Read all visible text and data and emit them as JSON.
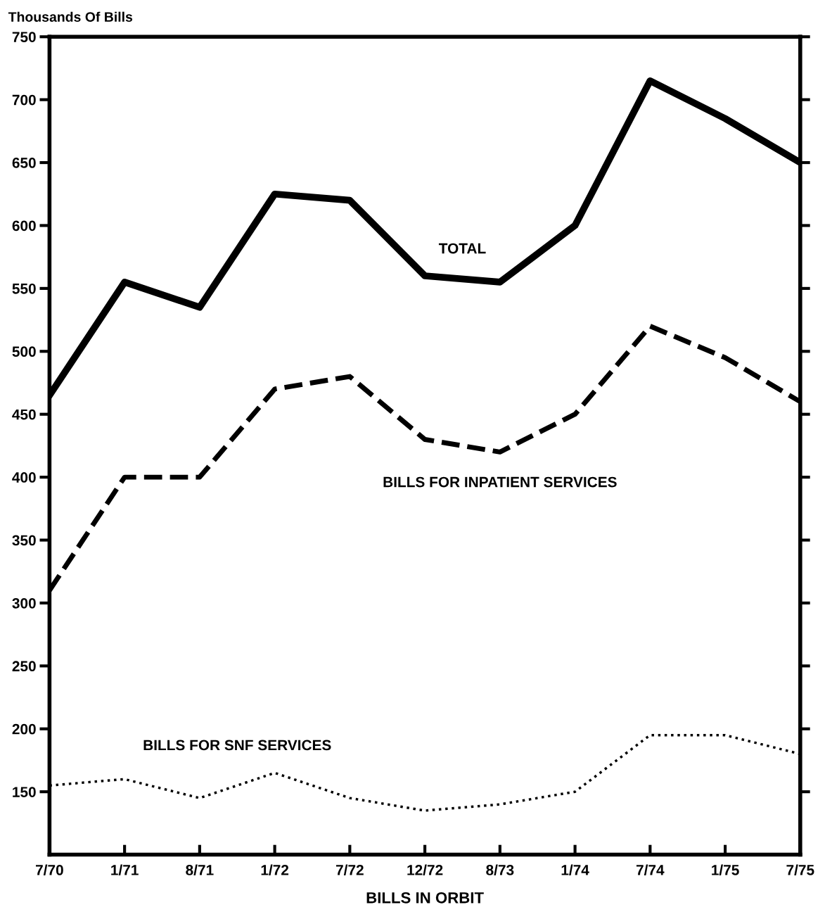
{
  "chart_data": {
    "type": "line",
    "ylabel": "Thousands Of Bills",
    "xlabel": "BILLS IN ORBIT",
    "categories": [
      "7/70",
      "1/71",
      "8/71",
      "1/72",
      "7/72",
      "12/72",
      "8/73",
      "1/74",
      "7/74",
      "1/75",
      "7/75"
    ],
    "series": [
      {
        "name": "TOTAL",
        "color": "#000000",
        "line_style": "solid",
        "values": [
          465,
          555,
          535,
          625,
          620,
          560,
          555,
          600,
          715,
          685,
          650
        ]
      },
      {
        "name": "BILLS FOR INPATIENT SERVICES",
        "color": "#000000",
        "line_style": "dashed",
        "values": [
          310,
          400,
          400,
          470,
          480,
          430,
          420,
          450,
          520,
          495,
          460
        ]
      },
      {
        "name": "BILLS FOR SNF SERVICES",
        "color": "#000000",
        "line_style": "dotted",
        "values": [
          155,
          160,
          145,
          165,
          145,
          135,
          140,
          150,
          195,
          195,
          180
        ]
      }
    ],
    "ylim": [
      100,
      750
    ],
    "yticks": [
      150,
      200,
      250,
      300,
      350,
      400,
      450,
      500,
      550,
      600,
      650,
      700,
      750
    ],
    "grid": false,
    "legend": false,
    "marker": "none"
  }
}
